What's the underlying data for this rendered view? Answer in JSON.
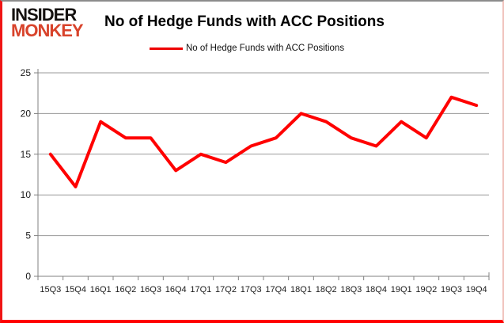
{
  "logo": {
    "line1": "INSIDER",
    "line2": "MONKEY",
    "line1_color": "#151210",
    "line2_color": "#d8432b"
  },
  "header": {
    "title": "No of Hedge Funds with ACC Positions"
  },
  "legend": {
    "label": "No of Hedge Funds with ACC Positions",
    "swatch_color": "#ee0000"
  },
  "chart_data": {
    "type": "line",
    "title": "No of Hedge Funds with ACC Positions",
    "categories": [
      "15Q3",
      "15Q4",
      "16Q1",
      "16Q2",
      "16Q3",
      "16Q4",
      "17Q1",
      "17Q2",
      "17Q3",
      "17Q4",
      "18Q1",
      "18Q2",
      "18Q3",
      "18Q4",
      "19Q1",
      "19Q2",
      "19Q3",
      "19Q4"
    ],
    "values": [
      15,
      11,
      19,
      17,
      17,
      13,
      15,
      14,
      16,
      17,
      20,
      19,
      17,
      16,
      19,
      17,
      22,
      21
    ],
    "xlabel": "",
    "ylabel": "",
    "ylim": [
      0,
      25
    ],
    "yticks": [
      0,
      5,
      10,
      15,
      20,
      25
    ],
    "grid": true,
    "legend_position": "top",
    "line_color": "#ff0000",
    "grid_color": "#9a9a9a",
    "axis_color": "#808080",
    "tick_label_color": "#1a1a1a"
  }
}
